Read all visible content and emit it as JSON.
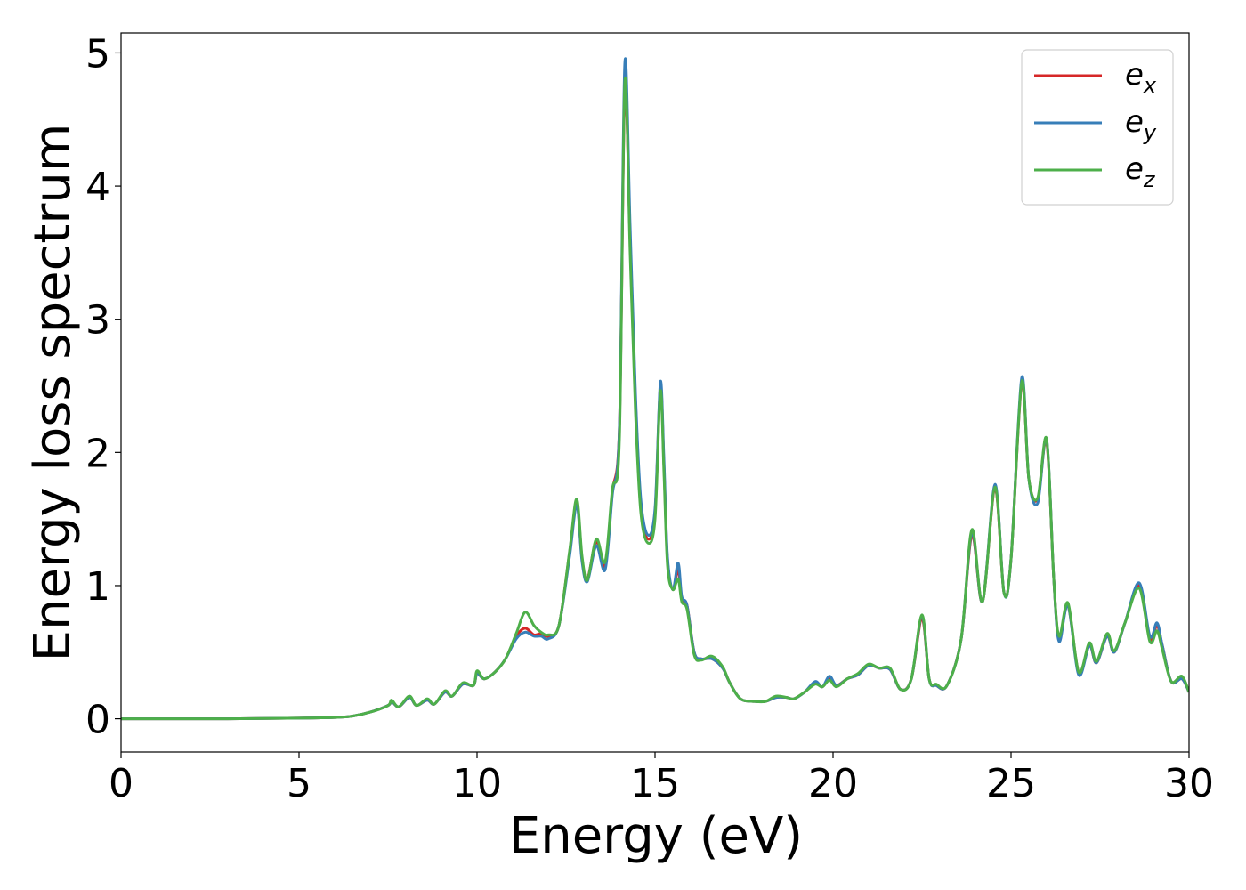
{
  "chart_data": {
    "type": "line",
    "xlabel": "Energy (eV)",
    "ylabel": "Energy loss spectrum",
    "xlim": [
      0,
      30
    ],
    "ylim": [
      -0.25,
      5.15
    ],
    "xticks": [
      "0",
      "5",
      "10",
      "15",
      "20",
      "25",
      "30"
    ],
    "yticks": [
      "0",
      "1",
      "2",
      "3",
      "4",
      "5"
    ],
    "xtick_values": [
      0,
      5,
      10,
      15,
      20,
      25,
      30
    ],
    "ytick_values": [
      0,
      1,
      2,
      3,
      4,
      5
    ],
    "grid": false,
    "legend_position": "top-right",
    "series": [
      {
        "name": "e",
        "sub": "x",
        "color": "#d62728",
        "x": [
          0,
          3,
          5,
          6,
          6.5,
          7,
          7.5,
          7.6,
          7.8,
          8.1,
          8.3,
          8.6,
          8.8,
          9.1,
          9.3,
          9.6,
          9.9,
          10.0,
          10.2,
          10.5,
          10.8,
          11.1,
          11.35,
          11.6,
          11.8,
          12.0,
          12.3,
          12.6,
          12.8,
          12.95,
          13.1,
          13.35,
          13.6,
          13.8,
          14.0,
          14.15,
          14.3,
          14.45,
          14.6,
          14.8,
          15.0,
          15.15,
          15.25,
          15.35,
          15.5,
          15.65,
          15.75,
          15.9,
          16.1,
          16.3,
          16.6,
          16.9,
          17.1,
          17.4,
          17.8,
          18.1,
          18.4,
          18.7,
          18.9,
          19.2,
          19.5,
          19.7,
          19.9,
          20.1,
          20.4,
          20.7,
          21.0,
          21.3,
          21.6,
          21.9,
          22.2,
          22.5,
          22.7,
          22.9,
          23.2,
          23.6,
          23.9,
          24.2,
          24.55,
          24.8,
          25.0,
          25.3,
          25.5,
          25.75,
          26.0,
          26.2,
          26.35,
          26.6,
          26.9,
          27.2,
          27.4,
          27.7,
          27.9,
          28.2,
          28.6,
          28.9,
          29.1,
          29.25,
          29.5,
          29.8,
          30.0
        ],
        "y": [
          0,
          0,
          0.005,
          0.01,
          0.02,
          0.05,
          0.1,
          0.13,
          0.09,
          0.16,
          0.1,
          0.14,
          0.11,
          0.2,
          0.17,
          0.26,
          0.25,
          0.34,
          0.3,
          0.35,
          0.45,
          0.62,
          0.68,
          0.63,
          0.64,
          0.62,
          0.7,
          1.25,
          1.62,
          1.2,
          1.05,
          1.33,
          1.15,
          1.7,
          2.2,
          4.7,
          3.6,
          2.4,
          1.6,
          1.35,
          1.55,
          2.5,
          1.9,
          1.2,
          0.97,
          1.12,
          0.9,
          0.85,
          0.5,
          0.45,
          0.45,
          0.38,
          0.27,
          0.15,
          0.13,
          0.13,
          0.16,
          0.16,
          0.15,
          0.2,
          0.27,
          0.24,
          0.3,
          0.25,
          0.3,
          0.33,
          0.4,
          0.38,
          0.37,
          0.22,
          0.3,
          0.75,
          0.3,
          0.25,
          0.25,
          0.6,
          1.38,
          0.88,
          1.73,
          0.95,
          1.2,
          2.52,
          1.8,
          1.65,
          2.08,
          1.05,
          0.6,
          0.85,
          0.35,
          0.55,
          0.42,
          0.62,
          0.5,
          0.72,
          1.0,
          0.6,
          0.7,
          0.55,
          0.28,
          0.3,
          0.2
        ]
      },
      {
        "name": "e",
        "sub": "y",
        "color": "#377eb8",
        "x": [
          0,
          3,
          5,
          6,
          6.5,
          7,
          7.5,
          7.6,
          7.8,
          8.1,
          8.3,
          8.6,
          8.8,
          9.1,
          9.3,
          9.6,
          9.9,
          10.0,
          10.2,
          10.5,
          10.8,
          11.1,
          11.35,
          11.6,
          11.8,
          12.0,
          12.3,
          12.6,
          12.8,
          12.95,
          13.1,
          13.35,
          13.6,
          13.8,
          14.0,
          14.15,
          14.3,
          14.45,
          14.6,
          14.8,
          15.0,
          15.15,
          15.25,
          15.35,
          15.5,
          15.65,
          15.75,
          15.9,
          16.1,
          16.3,
          16.6,
          16.9,
          17.1,
          17.4,
          17.8,
          18.1,
          18.4,
          18.7,
          18.9,
          19.2,
          19.5,
          19.7,
          19.9,
          20.1,
          20.4,
          20.7,
          21.0,
          21.3,
          21.6,
          21.9,
          22.2,
          22.5,
          22.7,
          22.9,
          23.2,
          23.6,
          23.9,
          24.2,
          24.55,
          24.8,
          25.0,
          25.3,
          25.5,
          25.75,
          26.0,
          26.2,
          26.35,
          26.6,
          26.9,
          27.2,
          27.4,
          27.7,
          27.9,
          28.2,
          28.6,
          28.9,
          29.1,
          29.25,
          29.5,
          29.8,
          30.0
        ],
        "y": [
          0,
          0,
          0.005,
          0.01,
          0.02,
          0.05,
          0.1,
          0.13,
          0.09,
          0.16,
          0.1,
          0.14,
          0.11,
          0.2,
          0.17,
          0.26,
          0.25,
          0.34,
          0.3,
          0.35,
          0.45,
          0.6,
          0.65,
          0.62,
          0.62,
          0.6,
          0.7,
          1.22,
          1.6,
          1.18,
          1.03,
          1.3,
          1.12,
          1.68,
          2.2,
          4.92,
          3.7,
          2.45,
          1.65,
          1.38,
          1.58,
          2.53,
          1.95,
          1.22,
          0.97,
          1.17,
          0.92,
          0.85,
          0.5,
          0.45,
          0.45,
          0.38,
          0.27,
          0.15,
          0.13,
          0.13,
          0.16,
          0.16,
          0.15,
          0.2,
          0.28,
          0.24,
          0.32,
          0.25,
          0.3,
          0.33,
          0.4,
          0.38,
          0.37,
          0.22,
          0.3,
          0.77,
          0.3,
          0.25,
          0.25,
          0.6,
          1.4,
          0.88,
          1.76,
          0.95,
          1.2,
          2.56,
          1.8,
          1.62,
          2.1,
          1.05,
          0.58,
          0.85,
          0.33,
          0.55,
          0.42,
          0.62,
          0.5,
          0.72,
          1.02,
          0.62,
          0.72,
          0.55,
          0.28,
          0.3,
          0.2
        ]
      },
      {
        "name": "e",
        "sub": "z",
        "color": "#4daf4a",
        "x": [
          0,
          3,
          5,
          6,
          6.5,
          7,
          7.5,
          7.6,
          7.8,
          8.1,
          8.3,
          8.6,
          8.8,
          9.1,
          9.3,
          9.6,
          9.9,
          10.0,
          10.2,
          10.5,
          10.8,
          11.1,
          11.35,
          11.6,
          11.8,
          12.0,
          12.3,
          12.6,
          12.8,
          12.95,
          13.1,
          13.35,
          13.6,
          13.8,
          14.0,
          14.15,
          14.3,
          14.45,
          14.6,
          14.8,
          15.0,
          15.15,
          15.25,
          15.35,
          15.5,
          15.65,
          15.75,
          15.9,
          16.1,
          16.3,
          16.6,
          16.9,
          17.1,
          17.4,
          17.8,
          18.1,
          18.4,
          18.7,
          18.9,
          19.2,
          19.5,
          19.7,
          19.9,
          20.1,
          20.4,
          20.7,
          21.0,
          21.3,
          21.6,
          21.9,
          22.2,
          22.5,
          22.7,
          22.9,
          23.2,
          23.6,
          23.9,
          24.2,
          24.55,
          24.8,
          25.0,
          25.3,
          25.5,
          25.75,
          26.0,
          26.2,
          26.35,
          26.6,
          26.9,
          27.2,
          27.4,
          27.7,
          27.9,
          28.2,
          28.6,
          28.9,
          29.1,
          29.25,
          29.5,
          29.8,
          30.0
        ],
        "y": [
          0,
          0,
          0.005,
          0.01,
          0.02,
          0.05,
          0.1,
          0.14,
          0.09,
          0.17,
          0.1,
          0.15,
          0.11,
          0.21,
          0.17,
          0.27,
          0.25,
          0.36,
          0.3,
          0.35,
          0.45,
          0.64,
          0.8,
          0.7,
          0.65,
          0.63,
          0.7,
          1.26,
          1.65,
          1.22,
          1.04,
          1.35,
          1.18,
          1.72,
          2.1,
          4.78,
          3.5,
          2.3,
          1.55,
          1.32,
          1.5,
          2.46,
          1.85,
          1.15,
          0.97,
          1.05,
          0.88,
          0.82,
          0.48,
          0.44,
          0.47,
          0.39,
          0.27,
          0.15,
          0.13,
          0.13,
          0.17,
          0.16,
          0.15,
          0.2,
          0.26,
          0.24,
          0.29,
          0.24,
          0.3,
          0.34,
          0.41,
          0.38,
          0.38,
          0.22,
          0.3,
          0.78,
          0.3,
          0.26,
          0.25,
          0.6,
          1.42,
          0.88,
          1.74,
          0.95,
          1.2,
          2.53,
          1.8,
          1.66,
          2.1,
          1.05,
          0.62,
          0.87,
          0.35,
          0.57,
          0.43,
          0.64,
          0.51,
          0.72,
          0.98,
          0.58,
          0.66,
          0.52,
          0.28,
          0.32,
          0.2
        ]
      }
    ]
  }
}
